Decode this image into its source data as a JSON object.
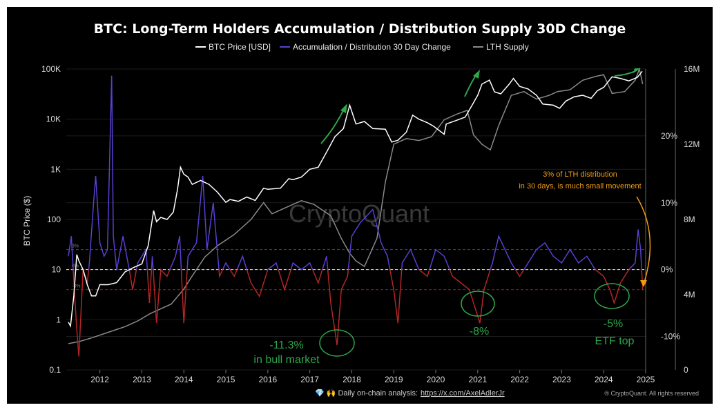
{
  "chart_data": {
    "type": "line",
    "title": "BTC: Long-Term Holders Accumulation / Distribution Supply 30D Change",
    "legend": [
      "BTC Price [USD]",
      "Accumulation / Distribution 30 Day Change",
      "LTH Supply"
    ],
    "ylabel_left": "BTC Price ($)",
    "x_ticks": [
      "2012",
      "2013",
      "2014",
      "2015",
      "2016",
      "2017",
      "2018",
      "2019",
      "2020",
      "2021",
      "2022",
      "2023",
      "2024",
      "2025"
    ],
    "y_left_ticks": [
      "100K",
      "10K",
      "1K",
      "100",
      "10",
      "1",
      "0.1"
    ],
    "y_mid_ticks": [
      "20%",
      "10%",
      "0%",
      "-10%"
    ],
    "y_right_ticks": [
      "16M",
      "12M",
      "8M",
      "4M",
      "0"
    ],
    "y_left_scale": "log",
    "y_left_range": [
      0.1,
      100000
    ],
    "y_mid_range": [
      -15,
      30
    ],
    "y_right_range": [
      0,
      16000000
    ],
    "x_range": [
      2011.2,
      2025.0
    ],
    "colors": {
      "price": "#ffffff",
      "accumulation": "#5b3fd0",
      "distribution": "#b52626",
      "lth_supply": "#8a8a8a",
      "arrows": "#2ea84a",
      "orange_note": "#f39c12"
    },
    "series": [
      {
        "name": "BTC Price [USD]",
        "points": [
          [
            2011.25,
            0.9
          ],
          [
            2011.3,
            0.75
          ],
          [
            2011.38,
            3
          ],
          [
            2011.45,
            20
          ],
          [
            2011.5,
            15
          ],
          [
            2011.6,
            10
          ],
          [
            2011.7,
            5
          ],
          [
            2011.8,
            3
          ],
          [
            2011.9,
            3
          ],
          [
            2012.0,
            5
          ],
          [
            2012.2,
            5
          ],
          [
            2012.4,
            5.5
          ],
          [
            2012.6,
            9
          ],
          [
            2012.8,
            11
          ],
          [
            2013.0,
            13
          ],
          [
            2013.15,
            30
          ],
          [
            2013.28,
            150
          ],
          [
            2013.35,
            90
          ],
          [
            2013.45,
            110
          ],
          [
            2013.6,
            100
          ],
          [
            2013.75,
            140
          ],
          [
            2013.85,
            400
          ],
          [
            2013.92,
            1100
          ],
          [
            2014.0,
            800
          ],
          [
            2014.1,
            700
          ],
          [
            2014.2,
            500
          ],
          [
            2014.4,
            600
          ],
          [
            2014.6,
            500
          ],
          [
            2014.8,
            350
          ],
          [
            2015.0,
            220
          ],
          [
            2015.1,
            250
          ],
          [
            2015.3,
            230
          ],
          [
            2015.5,
            280
          ],
          [
            2015.7,
            240
          ],
          [
            2015.9,
            420
          ],
          [
            2016.0,
            400
          ],
          [
            2016.3,
            420
          ],
          [
            2016.5,
            650
          ],
          [
            2016.6,
            620
          ],
          [
            2016.8,
            700
          ],
          [
            2017.0,
            1000
          ],
          [
            2017.2,
            1100
          ],
          [
            2017.4,
            2200
          ],
          [
            2017.6,
            4500
          ],
          [
            2017.8,
            6500
          ],
          [
            2017.95,
            19000
          ],
          [
            2018.1,
            8000
          ],
          [
            2018.3,
            9000
          ],
          [
            2018.5,
            6500
          ],
          [
            2018.8,
            6300
          ],
          [
            2018.95,
            3500
          ],
          [
            2019.1,
            3800
          ],
          [
            2019.3,
            5500
          ],
          [
            2019.45,
            12000
          ],
          [
            2019.6,
            10000
          ],
          [
            2019.8,
            8500
          ],
          [
            2019.95,
            7200
          ],
          [
            2020.2,
            5000
          ],
          [
            2020.25,
            8000
          ],
          [
            2020.5,
            9500
          ],
          [
            2020.7,
            11000
          ],
          [
            2020.85,
            18000
          ],
          [
            2021.0,
            30000
          ],
          [
            2021.1,
            50000
          ],
          [
            2021.28,
            60000
          ],
          [
            2021.4,
            35000
          ],
          [
            2021.55,
            32000
          ],
          [
            2021.75,
            50000
          ],
          [
            2021.85,
            65000
          ],
          [
            2022.0,
            45000
          ],
          [
            2022.2,
            40000
          ],
          [
            2022.4,
            30000
          ],
          [
            2022.55,
            20000
          ],
          [
            2022.8,
            19000
          ],
          [
            2022.95,
            16500
          ],
          [
            2023.1,
            23000
          ],
          [
            2023.3,
            28000
          ],
          [
            2023.5,
            30000
          ],
          [
            2023.7,
            26000
          ],
          [
            2023.85,
            37000
          ],
          [
            2024.0,
            43000
          ],
          [
            2024.2,
            70000
          ],
          [
            2024.4,
            65000
          ],
          [
            2024.6,
            58000
          ],
          [
            2024.8,
            68000
          ],
          [
            2024.92,
            90000
          ]
        ]
      },
      {
        "name": "Accumulation / Distribution 30 Day Change",
        "points": [
          [
            2011.25,
            2
          ],
          [
            2011.32,
            5
          ],
          [
            2011.4,
            -4
          ],
          [
            2011.45,
            -9
          ],
          [
            2011.5,
            -13
          ],
          [
            2011.6,
            0
          ],
          [
            2011.7,
            -2
          ],
          [
            2011.75,
            1
          ],
          [
            2011.85,
            10
          ],
          [
            2011.9,
            14
          ],
          [
            2012.0,
            4
          ],
          [
            2012.1,
            2
          ],
          [
            2012.18,
            3
          ],
          [
            2012.28,
            29
          ],
          [
            2012.32,
            5
          ],
          [
            2012.4,
            0
          ],
          [
            2012.55,
            5
          ],
          [
            2012.7,
            0
          ],
          [
            2012.78,
            -3
          ],
          [
            2012.9,
            1
          ],
          [
            2013.0,
            2
          ],
          [
            2013.1,
            3
          ],
          [
            2013.18,
            -5
          ],
          [
            2013.25,
            2
          ],
          [
            2013.35,
            -8
          ],
          [
            2013.45,
            0
          ],
          [
            2013.6,
            -1
          ],
          [
            2013.8,
            2
          ],
          [
            2013.9,
            5
          ],
          [
            2014.0,
            -8
          ],
          [
            2014.1,
            2
          ],
          [
            2014.3,
            4
          ],
          [
            2014.45,
            14
          ],
          [
            2014.55,
            3
          ],
          [
            2014.7,
            10
          ],
          [
            2014.85,
            -1
          ],
          [
            2015.0,
            1
          ],
          [
            2015.2,
            -1
          ],
          [
            2015.4,
            2
          ],
          [
            2015.6,
            -2
          ],
          [
            2015.8,
            -4
          ],
          [
            2016.0,
            0
          ],
          [
            2016.2,
            1
          ],
          [
            2016.4,
            -3
          ],
          [
            2016.6,
            1
          ],
          [
            2016.8,
            0
          ],
          [
            2017.0,
            1
          ],
          [
            2017.2,
            -2
          ],
          [
            2017.4,
            2
          ],
          [
            2017.5,
            -5
          ],
          [
            2017.65,
            -11.3
          ],
          [
            2017.75,
            -3
          ],
          [
            2017.9,
            -1
          ],
          [
            2018.0,
            5
          ],
          [
            2018.2,
            7
          ],
          [
            2018.5,
            9
          ],
          [
            2018.7,
            4
          ],
          [
            2018.85,
            2
          ],
          [
            2019.0,
            -3
          ],
          [
            2019.1,
            -8
          ],
          [
            2019.2,
            1
          ],
          [
            2019.4,
            3
          ],
          [
            2019.6,
            0
          ],
          [
            2019.8,
            -1
          ],
          [
            2020.0,
            3
          ],
          [
            2020.2,
            2
          ],
          [
            2020.4,
            -1
          ],
          [
            2020.6,
            -2
          ],
          [
            2020.8,
            -3
          ],
          [
            2020.95,
            -6
          ],
          [
            2021.05,
            -8
          ],
          [
            2021.15,
            -3
          ],
          [
            2021.35,
            1
          ],
          [
            2021.5,
            5
          ],
          [
            2021.65,
            3
          ],
          [
            2021.8,
            1
          ],
          [
            2022.0,
            -1
          ],
          [
            2022.2,
            1
          ],
          [
            2022.4,
            3
          ],
          [
            2022.6,
            4
          ],
          [
            2022.8,
            2
          ],
          [
            2023.0,
            1
          ],
          [
            2023.2,
            3
          ],
          [
            2023.4,
            1
          ],
          [
            2023.6,
            2
          ],
          [
            2023.8,
            0
          ],
          [
            2024.0,
            -1
          ],
          [
            2024.15,
            -3
          ],
          [
            2024.25,
            -5
          ],
          [
            2024.4,
            -2
          ],
          [
            2024.6,
            0
          ],
          [
            2024.75,
            1
          ],
          [
            2024.82,
            6
          ],
          [
            2024.88,
            3
          ],
          [
            2024.93,
            -3
          ]
        ]
      },
      {
        "name": "LTH Supply",
        "points": [
          [
            2011.25,
            1.4
          ],
          [
            2011.5,
            1.5
          ],
          [
            2011.8,
            1.7
          ],
          [
            2012.2,
            2.0
          ],
          [
            2012.6,
            2.3
          ],
          [
            2012.9,
            2.6
          ],
          [
            2013.2,
            3.0
          ],
          [
            2013.4,
            3.2
          ],
          [
            2013.7,
            3.5
          ],
          [
            2014.0,
            4.3
          ],
          [
            2014.2,
            5.0
          ],
          [
            2014.5,
            6.0
          ],
          [
            2014.8,
            6.6
          ],
          [
            2015.2,
            7.2
          ],
          [
            2015.6,
            8.0
          ],
          [
            2015.9,
            8.9
          ],
          [
            2016.1,
            8.3
          ],
          [
            2016.4,
            8.6
          ],
          [
            2016.8,
            9.0
          ],
          [
            2017.1,
            8.8
          ],
          [
            2017.5,
            8.2
          ],
          [
            2017.75,
            7.0
          ],
          [
            2017.95,
            6.2
          ],
          [
            2018.1,
            5.8
          ],
          [
            2018.3,
            5.5
          ],
          [
            2018.6,
            7.0
          ],
          [
            2018.8,
            10.0
          ],
          [
            2019.0,
            12.0
          ],
          [
            2019.3,
            12.3
          ],
          [
            2019.6,
            12.2
          ],
          [
            2019.9,
            12.4
          ],
          [
            2020.2,
            13.3
          ],
          [
            2020.5,
            13.6
          ],
          [
            2020.75,
            13.8
          ],
          [
            2020.9,
            12.5
          ],
          [
            2021.1,
            12.0
          ],
          [
            2021.3,
            11.7
          ],
          [
            2021.5,
            13.0
          ],
          [
            2021.8,
            14.6
          ],
          [
            2022.1,
            14.8
          ],
          [
            2022.4,
            14.4
          ],
          [
            2022.7,
            14.6
          ],
          [
            2022.9,
            14.8
          ],
          [
            2023.2,
            14.9
          ],
          [
            2023.5,
            15.4
          ],
          [
            2023.8,
            15.6
          ],
          [
            2024.0,
            15.7
          ],
          [
            2024.2,
            14.7
          ],
          [
            2024.5,
            14.8
          ],
          [
            2024.75,
            15.4
          ],
          [
            2024.85,
            16.0
          ],
          [
            2024.93,
            15.2
          ]
        ]
      }
    ],
    "reference_lines": [
      {
        "label": "3%",
        "value": 3
      },
      {
        "label": "0%",
        "value": 0
      },
      {
        "label": "-3%",
        "value": -3
      }
    ],
    "annotations": [
      {
        "text": "-11.3%",
        "subtext": "in bull market"
      },
      {
        "text": "-8%"
      },
      {
        "text": "-5%",
        "subtext": "ETF top"
      },
      {
        "text": "3% of LTH distribution",
        "subtext": "in 30 days, is much small movement"
      }
    ]
  },
  "watermark": "CryptoQuant",
  "footer": {
    "prefix": "💎 🙌 Daily on-chain analysis:",
    "link": "https://x.com/AxelAdlerJr",
    "copyright": "® CryptoQuant. All rights reserved"
  }
}
